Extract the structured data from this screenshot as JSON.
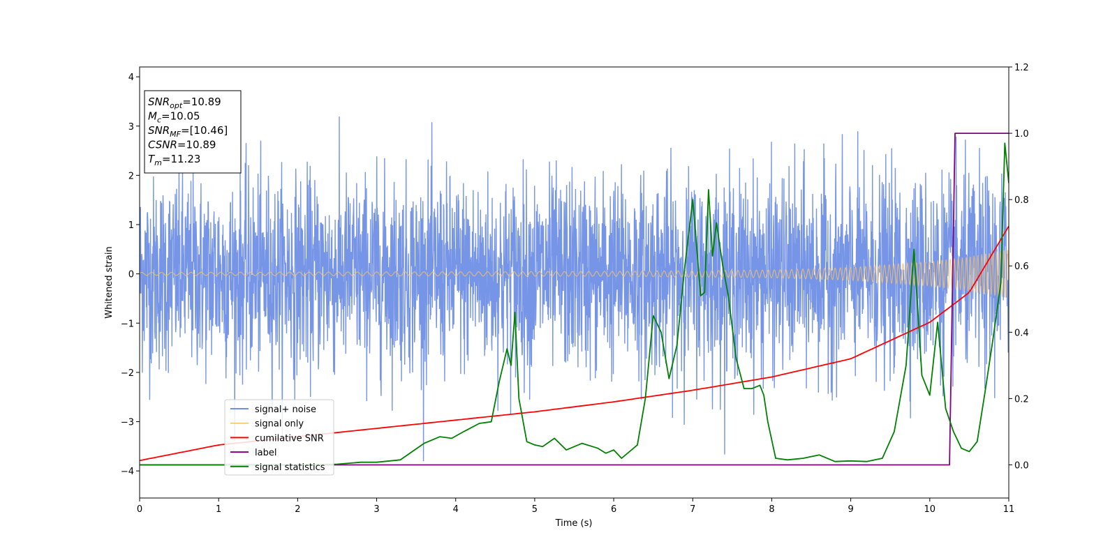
{
  "chart_data": {
    "type": "line",
    "xlabel": "Time (s)",
    "ylabel": "Whitened strain",
    "xlim": [
      0,
      11
    ],
    "ylim": [
      -4.55,
      4.2
    ],
    "y2lim": [
      -0.1,
      1.2
    ],
    "xticks": [
      "0",
      "1",
      "2",
      "3",
      "4",
      "5",
      "6",
      "7",
      "8",
      "9",
      "10",
      "11"
    ],
    "yticks": [
      "−4",
      "−3",
      "−2",
      "−1",
      "0",
      "1",
      "2",
      "3",
      "4"
    ],
    "y2ticks": [
      "0.0",
      "0.2",
      "0.4",
      "0.6",
      "0.8",
      "1.0",
      "1.2"
    ],
    "legend_position": "lower-left",
    "annotation": {
      "lines": [
        {
          "var": "SNR",
          "sub": "opt",
          "value": "=10.89"
        },
        {
          "var": "M",
          "sub": "c",
          "value": "=10.05"
        },
        {
          "var": "SNR",
          "sub": "MF",
          "value": "=[10.46]"
        },
        {
          "var": "CSNR",
          "sub": "",
          "value": "=10.89"
        },
        {
          "var": "T",
          "sub": "m",
          "value": "=11.23"
        }
      ]
    },
    "series": [
      {
        "name": "signal+ noise",
        "color": "#6f8fe6",
        "axis": "left",
        "kind": "noise",
        "note_values": "dense band, approx ±1.3 typical, peaks up to ±3.8",
        "typical_amplitude": 1.3,
        "peak_amplitude": 3.8
      },
      {
        "name": "signal only",
        "color": "#f5c06a",
        "axis": "left",
        "kind": "chirp",
        "amplitude_envelope": [
          [
            0,
            0.03
          ],
          [
            6,
            0.05
          ],
          [
            8,
            0.08
          ],
          [
            9,
            0.13
          ],
          [
            10,
            0.25
          ],
          [
            10.5,
            0.35
          ],
          [
            11,
            0.5
          ]
        ]
      },
      {
        "name": "cumilative SNR",
        "color": "#ff0000",
        "axis": "right",
        "x": [
          0,
          1,
          2,
          3,
          4,
          5,
          6,
          7,
          8,
          9,
          10,
          10.5,
          11
        ],
        "y": [
          0.013,
          0.06,
          0.085,
          0.11,
          0.135,
          0.16,
          0.19,
          0.225,
          0.265,
          0.32,
          0.43,
          0.52,
          0.72
        ]
      },
      {
        "name": "label",
        "color": "#800080",
        "axis": "right",
        "x": [
          0,
          10.25,
          10.32,
          11
        ],
        "y": [
          0,
          0,
          1,
          1
        ]
      },
      {
        "name": "signal statistics",
        "color": "#008000",
        "axis": "right",
        "x": [
          0,
          1,
          2,
          2.5,
          2.8,
          3.0,
          3.3,
          3.6,
          3.8,
          3.95,
          4.1,
          4.3,
          4.45,
          4.55,
          4.65,
          4.7,
          4.75,
          4.8,
          4.9,
          5.0,
          5.1,
          5.25,
          5.4,
          5.6,
          5.8,
          5.9,
          6.0,
          6.1,
          6.3,
          6.4,
          6.5,
          6.6,
          6.7,
          6.8,
          6.9,
          7.0,
          7.1,
          7.15,
          7.2,
          7.25,
          7.3,
          7.38,
          7.45,
          7.55,
          7.65,
          7.75,
          7.85,
          7.9,
          7.95,
          8.05,
          8.2,
          8.4,
          8.6,
          8.8,
          9.0,
          9.2,
          9.4,
          9.55,
          9.7,
          9.8,
          9.9,
          10.0,
          10.1,
          10.2,
          10.3,
          10.4,
          10.5,
          10.6,
          10.7,
          10.8,
          10.9,
          10.95,
          11.0
        ],
        "y": [
          0,
          0,
          0,
          0.002,
          0.008,
          0.008,
          0.015,
          0.065,
          0.085,
          0.08,
          0.1,
          0.125,
          0.13,
          0.25,
          0.35,
          0.3,
          0.46,
          0.2,
          0.07,
          0.06,
          0.055,
          0.08,
          0.045,
          0.065,
          0.05,
          0.035,
          0.045,
          0.02,
          0.06,
          0.2,
          0.45,
          0.4,
          0.26,
          0.36,
          0.6,
          0.8,
          0.51,
          0.52,
          0.83,
          0.63,
          0.73,
          0.6,
          0.51,
          0.32,
          0.23,
          0.23,
          0.24,
          0.21,
          0.13,
          0.02,
          0.015,
          0.02,
          0.03,
          0.01,
          0.012,
          0.01,
          0.02,
          0.1,
          0.3,
          0.65,
          0.27,
          0.21,
          0.43,
          0.17,
          0.1,
          0.05,
          0.04,
          0.07,
          0.22,
          0.38,
          0.55,
          0.97,
          0.85
        ]
      }
    ]
  }
}
